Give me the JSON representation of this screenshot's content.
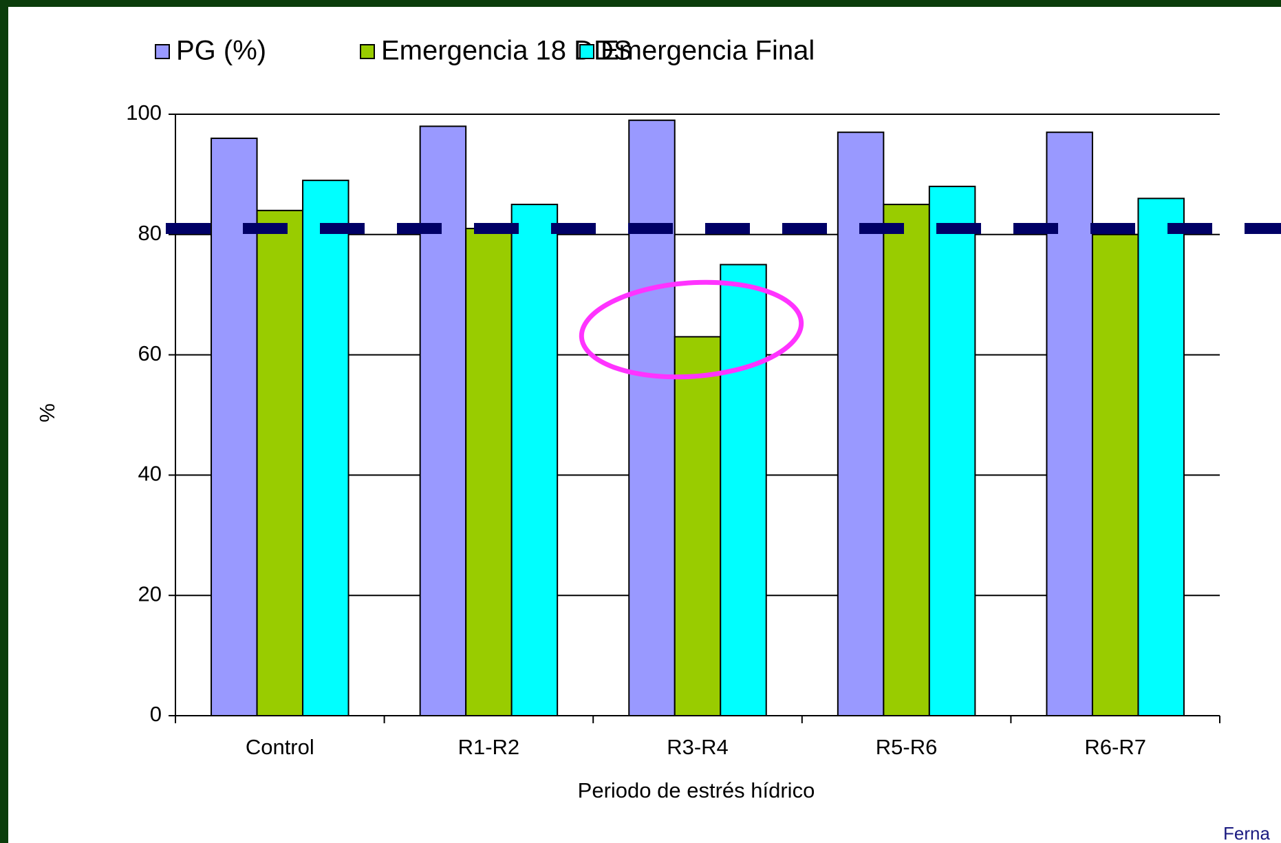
{
  "chart_data": {
    "type": "bar",
    "y_label": "%",
    "x_label": "Periodo de estrés hídrico",
    "categories": [
      "Control",
      "R1-R2",
      "R3-R4",
      "R5-R6",
      "R6-R7"
    ],
    "series": [
      {
        "name": "PG (%)",
        "color": "#9999ff",
        "values": [
          96,
          98,
          99,
          97,
          97
        ]
      },
      {
        "name": "Emergencia 18 DDS",
        "color": "#99cc00",
        "values": [
          84,
          81,
          63,
          85,
          80
        ]
      },
      {
        "name": "Emergencia Final",
        "color": "#00ffff",
        "values": [
          89,
          85,
          75,
          88,
          86
        ]
      }
    ],
    "ylim": [
      0,
      100
    ],
    "yticks": [
      0,
      20,
      40,
      60,
      80,
      100
    ],
    "grid": true,
    "reference_line": 81,
    "reference_color": "#000066",
    "source": "Ferna"
  }
}
